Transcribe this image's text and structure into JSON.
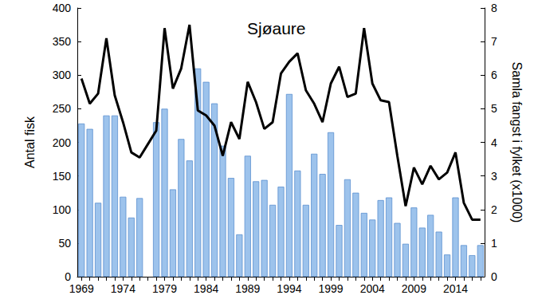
{
  "chart_data": {
    "type": "bar",
    "title": "Sjøaure",
    "y_label": "Antal fisk",
    "y2_label": "Samla fangst i fylket (x1000)",
    "categories": [
      "1969",
      null,
      null,
      null,
      null,
      "1974",
      null,
      null,
      null,
      null,
      "1979",
      null,
      null,
      null,
      null,
      "1984",
      null,
      null,
      null,
      null,
      "1989",
      null,
      null,
      null,
      null,
      "1994",
      null,
      null,
      null,
      null,
      "1999",
      null,
      null,
      null,
      null,
      "2004",
      null,
      null,
      null,
      null,
      "2009",
      null,
      null,
      null,
      null,
      "2014",
      null,
      null,
      null
    ],
    "series": [
      {
        "type": "bar",
        "color": "#9dc3ec",
        "values": [
          228,
          220,
          110,
          240,
          240,
          119,
          88,
          117,
          null,
          230,
          250,
          130,
          205,
          173,
          310,
          290,
          258,
          195,
          147,
          63,
          180,
          142,
          144,
          107,
          134,
          272,
          158,
          107,
          183,
          153,
          215,
          77,
          145,
          125,
          95,
          85,
          114,
          118,
          80,
          49,
          103,
          73,
          92,
          67,
          33,
          118,
          47,
          32,
          47
        ]
      },
      {
        "type": "line",
        "axis": "y2",
        "color": "#000000",
        "values": [
          5.9,
          5.15,
          5.45,
          7.1,
          5.4,
          4.6,
          3.7,
          3.55,
          3.95,
          4.35,
          7.4,
          5.6,
          6.2,
          7.5,
          4.95,
          4.8,
          4.5,
          3.6,
          4.6,
          4.1,
          5.8,
          5.2,
          4.4,
          4.6,
          6.05,
          6.4,
          6.65,
          5.55,
          5.15,
          4.6,
          5.75,
          6.25,
          5.35,
          5.45,
          7.4,
          5.75,
          5.25,
          5.2,
          3.6,
          2.1,
          3.25,
          2.75,
          3.3,
          2.9,
          3.1,
          3.7,
          2.2,
          1.7,
          1.7
        ]
      }
    ],
    "ylim": [
      0,
      400
    ],
    "yticks": [
      0,
      50,
      100,
      150,
      200,
      250,
      300,
      350,
      400
    ],
    "y2lim": [
      0,
      8
    ],
    "y2ticks": [
      0,
      1,
      2,
      3,
      4,
      5,
      6,
      7,
      8
    ],
    "grid": false
  }
}
